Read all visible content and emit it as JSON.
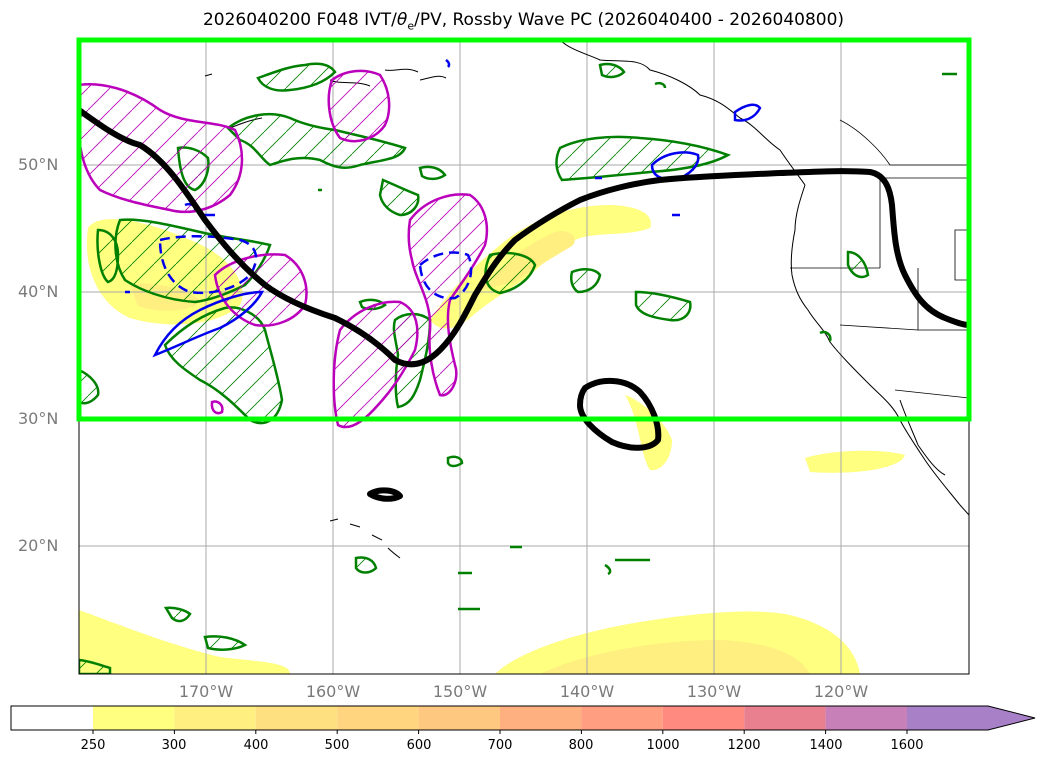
{
  "title_parts": {
    "prefix": "2026040200 F048 IVT/",
    "theta": "θ",
    "sub": "e",
    "suffix": "/PV, Rossby Wave PC (2026040400 - 2026040800)"
  },
  "map": {
    "projection": "PlateCarree",
    "lon_range": [
      -180,
      -110
    ],
    "lat_range": [
      10,
      60
    ],
    "highlight_box_lat_range": [
      30,
      60
    ],
    "highlight_box_color": "#00ff00",
    "grid": true
  },
  "lat_ticks": [
    {
      "value": 20,
      "label": "20°N"
    },
    {
      "value": 30,
      "label": "30°N"
    },
    {
      "value": 40,
      "label": "40°N"
    },
    {
      "value": 50,
      "label": "50°N"
    }
  ],
  "lon_ticks": [
    {
      "value": -170,
      "label": "170°W"
    },
    {
      "value": -160,
      "label": "160°W"
    },
    {
      "value": -150,
      "label": "150°W"
    },
    {
      "value": -140,
      "label": "140°W"
    },
    {
      "value": -130,
      "label": "130°W"
    },
    {
      "value": -120,
      "label": "120°W"
    }
  ],
  "colorbar": {
    "levels": [
      "250",
      "300",
      "400",
      "500",
      "600",
      "700",
      "800",
      "1000",
      "1200",
      "1400",
      "1600"
    ],
    "colors": [
      "#ffff80",
      "#ffee80",
      "#ffe080",
      "#ffd580",
      "#ffc880",
      "#ffb080",
      "#ff9e80",
      "#ff8a80",
      "#e8808f",
      "#c880b8",
      "#a880c8"
    ],
    "extend": "max"
  },
  "layer_colors": {
    "ivt_fill": "#ffff80",
    "pv_contour": "#000000",
    "wave_green": "#008000",
    "wave_magenta": "#bb00bb",
    "wave_blue": "#0000ee"
  }
}
